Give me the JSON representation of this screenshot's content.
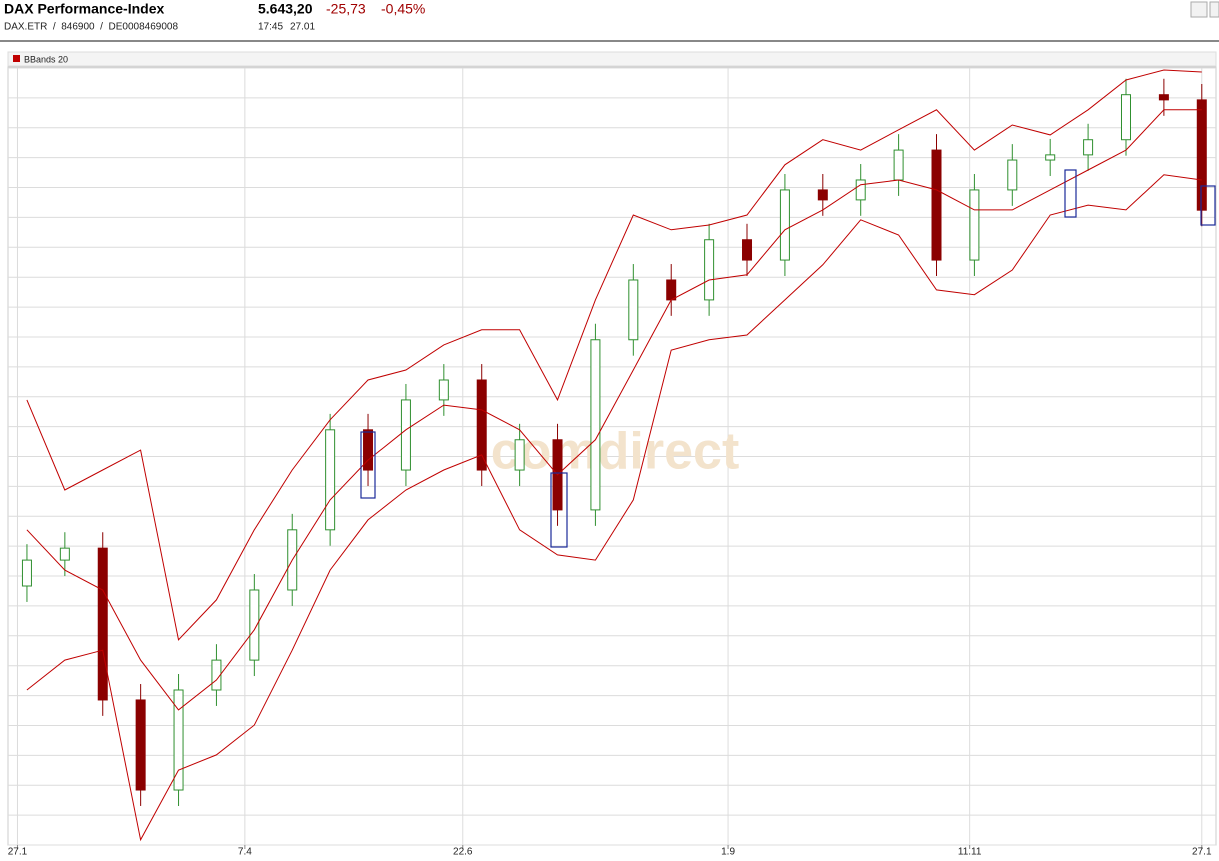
{
  "header": {
    "title": "DAX Performance-Index",
    "subtitle": "DAX.ETR  /  846900  /  DE0008469008",
    "price": "5.643,20",
    "change": "-25,73",
    "change_pct": "-0,45%",
    "time": "17:45",
    "date": "27.01"
  },
  "chart_data": {
    "type": "candlestick",
    "watermark": "comdirect",
    "x": [
      4,
      12,
      20,
      28,
      36,
      44,
      52,
      60,
      68,
      76,
      84,
      92,
      100,
      108,
      116,
      124,
      132,
      140,
      148,
      156,
      164,
      172,
      180,
      188,
      196,
      204,
      212,
      220,
      228,
      236,
      244,
      252
    ],
    "open": [
      4700,
      4765,
      4795,
      4414,
      4188,
      4439,
      4514,
      4690,
      4841,
      5092,
      4991,
      5167,
      5217,
      4991,
      5067,
      4891,
      5318,
      5468,
      5418,
      5569,
      5518,
      5694,
      5669,
      5719,
      5794,
      5518,
      5694,
      5769,
      5782,
      5820,
      5933,
      5920
    ],
    "high": [
      4805,
      4835,
      4835,
      4454,
      4479,
      4554,
      4730,
      4881,
      5132,
      5132,
      5207,
      5257,
      5257,
      5107,
      5107,
      5358,
      5508,
      5508,
      5609,
      5609,
      5734,
      5734,
      5759,
      5834,
      5834,
      5734,
      5809,
      5822,
      5860,
      5973,
      5973,
      5960
    ],
    "low": [
      4660,
      4725,
      4374,
      4148,
      4148,
      4399,
      4474,
      4650,
      4801,
      4951,
      4951,
      5127,
      4951,
      4951,
      4851,
      4851,
      5278,
      5378,
      5378,
      5478,
      5478,
      5629,
      5629,
      5679,
      5478,
      5478,
      5654,
      5729,
      5742,
      5780,
      5880,
      5603
    ],
    "close": [
      4765,
      4795,
      4414,
      4188,
      4439,
      4514,
      4690,
      4841,
      5092,
      4991,
      5167,
      5217,
      4991,
      5067,
      4891,
      5318,
      5468,
      5418,
      5569,
      5518,
      5694,
      5669,
      5719,
      5794,
      5518,
      5694,
      5769,
      5782,
      5820,
      5933,
      5920,
      5643.2
    ],
    "up_color": "#2f8f2f",
    "down_color": "#8b0000",
    "bands": {
      "name": "BBands 20",
      "color": "#c00000",
      "upper": [
        5167,
        4941,
        4991,
        5041,
        4565,
        4665,
        4841,
        4991,
        5117,
        5217,
        5242,
        5305,
        5343,
        5343,
        5167,
        5418,
        5631,
        5594,
        5606,
        5631,
        5757,
        5820,
        5794,
        5845,
        5895,
        5794,
        5857,
        5832,
        5895,
        5970,
        5995,
        5990
      ],
      "middle": [
        4841,
        4740,
        4690,
        4514,
        4389,
        4464,
        4590,
        4765,
        4916,
        5016,
        5092,
        5154,
        5142,
        5092,
        4979,
        5067,
        5242,
        5418,
        5468,
        5481,
        5594,
        5644,
        5707,
        5719,
        5694,
        5644,
        5644,
        5694,
        5744,
        5794,
        5895,
        5895
      ],
      "lower": [
        4439,
        4514,
        4539,
        4063,
        4238,
        4276,
        4351,
        4539,
        4740,
        4866,
        4941,
        4991,
        5029,
        4841,
        4778,
        4765,
        4916,
        5292,
        5318,
        5330,
        5418,
        5506,
        5619,
        5581,
        5443,
        5431,
        5493,
        5631,
        5656,
        5644,
        5732,
        5719
      ]
    },
    "xlim": [
      0,
      255
    ],
    "xticks": [
      {
        "value": 2,
        "label": "27.1"
      },
      {
        "value": 50,
        "label": "7.4"
      },
      {
        "value": 96,
        "label": "22.6"
      },
      {
        "value": 152,
        "label": "1.9"
      },
      {
        "value": 203,
        "label": "11.11"
      },
      {
        "value": 252,
        "label": "27.1"
      }
    ],
    "ylim": [
      4050,
      6000
    ],
    "yticks": [
      4050,
      4125,
      4200,
      4275,
      4350,
      4425,
      4500,
      4575,
      4650,
      4725,
      4800,
      4875,
      4950,
      5025,
      5100,
      5175,
      5250,
      5325,
      5400,
      5475,
      5550,
      5625,
      5700,
      5775,
      5850,
      5925,
      6000
    ],
    "grid": true
  }
}
